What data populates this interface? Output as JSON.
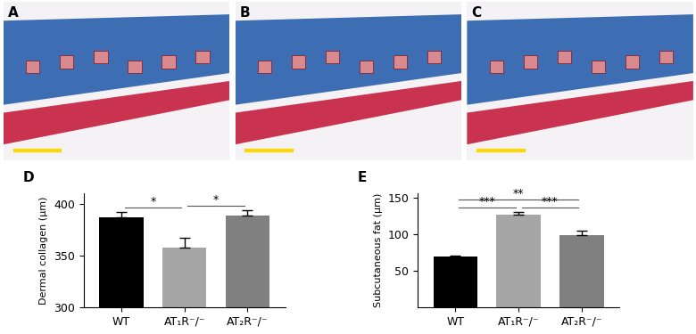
{
  "image_panels": [
    {
      "label": "A"
    },
    {
      "label": "B"
    },
    {
      "label": "C"
    }
  ],
  "chart_data": [
    {
      "type": "bar",
      "title": "D",
      "y_label": "Dermal collagen (μm)",
      "categories": [
        "WT",
        "AT₁R⁻/⁻",
        "AT₂R⁻/⁻"
      ],
      "values": [
        387,
        358,
        389
      ],
      "errors": [
        5,
        9,
        5
      ],
      "colors": [
        "#000000",
        "#a6a6a6",
        "#808080"
      ],
      "ylim": [
        300,
        410
      ],
      "yticks": [
        300,
        350,
        400
      ],
      "annotations": [
        {
          "between": [
            "WT",
            "AT₁R⁻/⁻"
          ],
          "label": "*"
        },
        {
          "between": [
            "AT₁R⁻/⁻",
            "AT₂R⁻/⁻"
          ],
          "label": "*"
        }
      ]
    },
    {
      "type": "bar",
      "title": "E",
      "y_label": "Subcutaneous fat (μm)",
      "categories": [
        "WT",
        "AT₁R⁻/⁻",
        "AT₂R⁻/⁻"
      ],
      "values": [
        69,
        126,
        98
      ],
      "errors": [
        2,
        4,
        6
      ],
      "colors": [
        "#000000",
        "#a6a6a6",
        "#808080"
      ],
      "ylim": [
        0,
        155
      ],
      "yticks": [
        50,
        100,
        150
      ],
      "annotations": [
        {
          "between": [
            "WT",
            "AT₁R⁻/⁻"
          ],
          "label": "***"
        },
        {
          "between": [
            "AT₁R⁻/⁻",
            "AT₂R⁻/⁻"
          ],
          "label": "***"
        },
        {
          "between": [
            "WT",
            "AT₂R⁻/⁻"
          ],
          "label": "**"
        }
      ]
    }
  ]
}
